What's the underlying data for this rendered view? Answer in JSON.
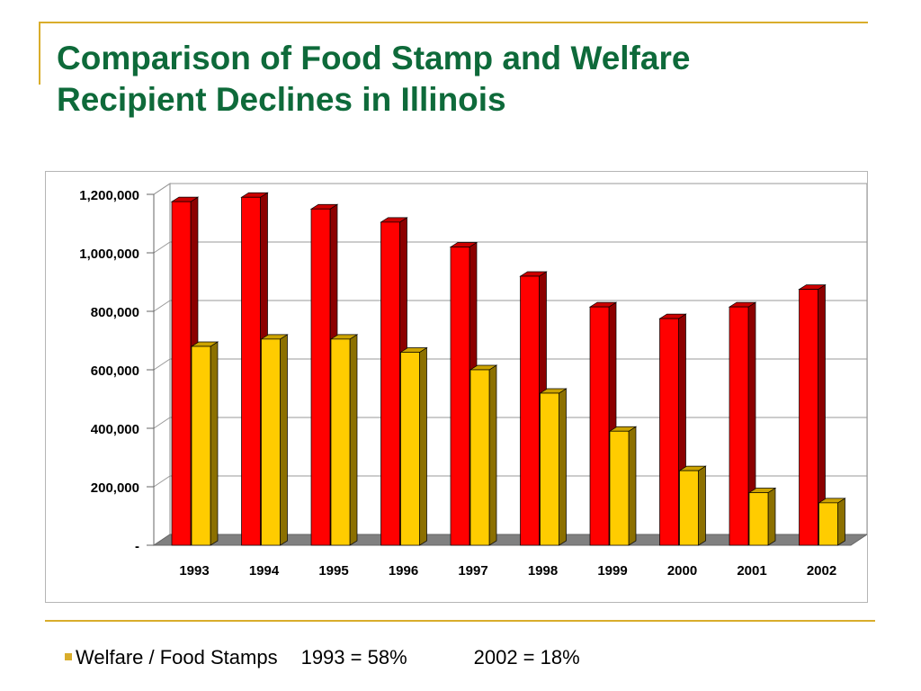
{
  "slide": {
    "title_line1": "Comparison of Food Stamp and Welfare",
    "title_line2": "Recipient Declines in Illinois"
  },
  "footnote": {
    "label": "Welfare / Food Stamps",
    "value_1993": "1993 = 58%",
    "value_2002": "2002 = 18%"
  },
  "colors": {
    "accent": "#d9ad2b",
    "title": "#0e6a3a",
    "food_stamps": "#ff0000",
    "welfare": "#ffcc00"
  },
  "chart_data": {
    "type": "bar",
    "categories": [
      "1993",
      "1994",
      "1995",
      "1996",
      "1997",
      "1998",
      "1999",
      "2000",
      "2001",
      "2002"
    ],
    "series": [
      {
        "values": [
          1175000,
          1190000,
          1150000,
          1105000,
          1020000,
          920000,
          815000,
          775000,
          815000,
          875000
        ],
        "color": "#ff0000"
      },
      {
        "values": [
          680000,
          705000,
          705000,
          660000,
          600000,
          520000,
          390000,
          255000,
          180000,
          145000
        ],
        "color": "#ffcc00"
      }
    ],
    "y_ticks": [
      "-",
      "200,000",
      "400,000",
      "600,000",
      "800,000",
      "1,000,000",
      "1,200,000"
    ],
    "ylim": [
      0,
      1200000
    ],
    "grid": true,
    "legend": "none",
    "style": "3d-column"
  }
}
